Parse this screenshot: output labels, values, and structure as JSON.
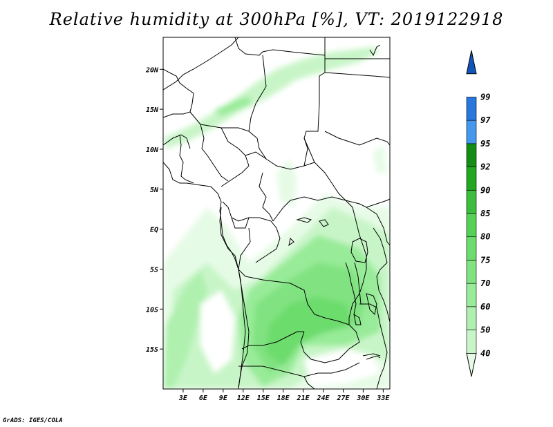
{
  "title": "Relative humidity at 300hPa [%], VT: 2019122918",
  "credit": "GrADS: IGES/COLA",
  "map": {
    "lon_range": [
      0,
      34
    ],
    "lat_range": [
      -20,
      24
    ],
    "lon_ticks": [
      {
        "value": 3,
        "label": "3E"
      },
      {
        "value": 6,
        "label": "6E"
      },
      {
        "value": 9,
        "label": "9E"
      },
      {
        "value": 12,
        "label": "12E"
      },
      {
        "value": 15,
        "label": "15E"
      },
      {
        "value": 18,
        "label": "18E"
      },
      {
        "value": 21,
        "label": "21E"
      },
      {
        "value": 24,
        "label": "24E"
      },
      {
        "value": 27,
        "label": "27E"
      },
      {
        "value": 30,
        "label": "30E"
      },
      {
        "value": 33,
        "label": "33E"
      }
    ],
    "lat_ticks": [
      {
        "value": 20,
        "label": "20N"
      },
      {
        "value": 15,
        "label": "15N"
      },
      {
        "value": 10,
        "label": "10N"
      },
      {
        "value": 5,
        "label": "5N"
      },
      {
        "value": 0,
        "label": "EQ"
      },
      {
        "value": -5,
        "label": "5S"
      },
      {
        "value": -10,
        "label": "10S"
      },
      {
        "value": -15,
        "label": "15S"
      }
    ]
  },
  "colorbar": {
    "levels": [
      "40",
      "50",
      "60",
      "70",
      "75",
      "80",
      "85",
      "90",
      "92",
      "95",
      "97",
      "99"
    ],
    "colors": [
      "#e6fbe6",
      "#c8f5c8",
      "#aff0af",
      "#98eb98",
      "#80e280",
      "#6cdc6c",
      "#55d255",
      "#3cbd3c",
      "#22a722",
      "#138d13",
      "#4499ee",
      "#2777dd",
      "#1155bb"
    ]
  }
}
